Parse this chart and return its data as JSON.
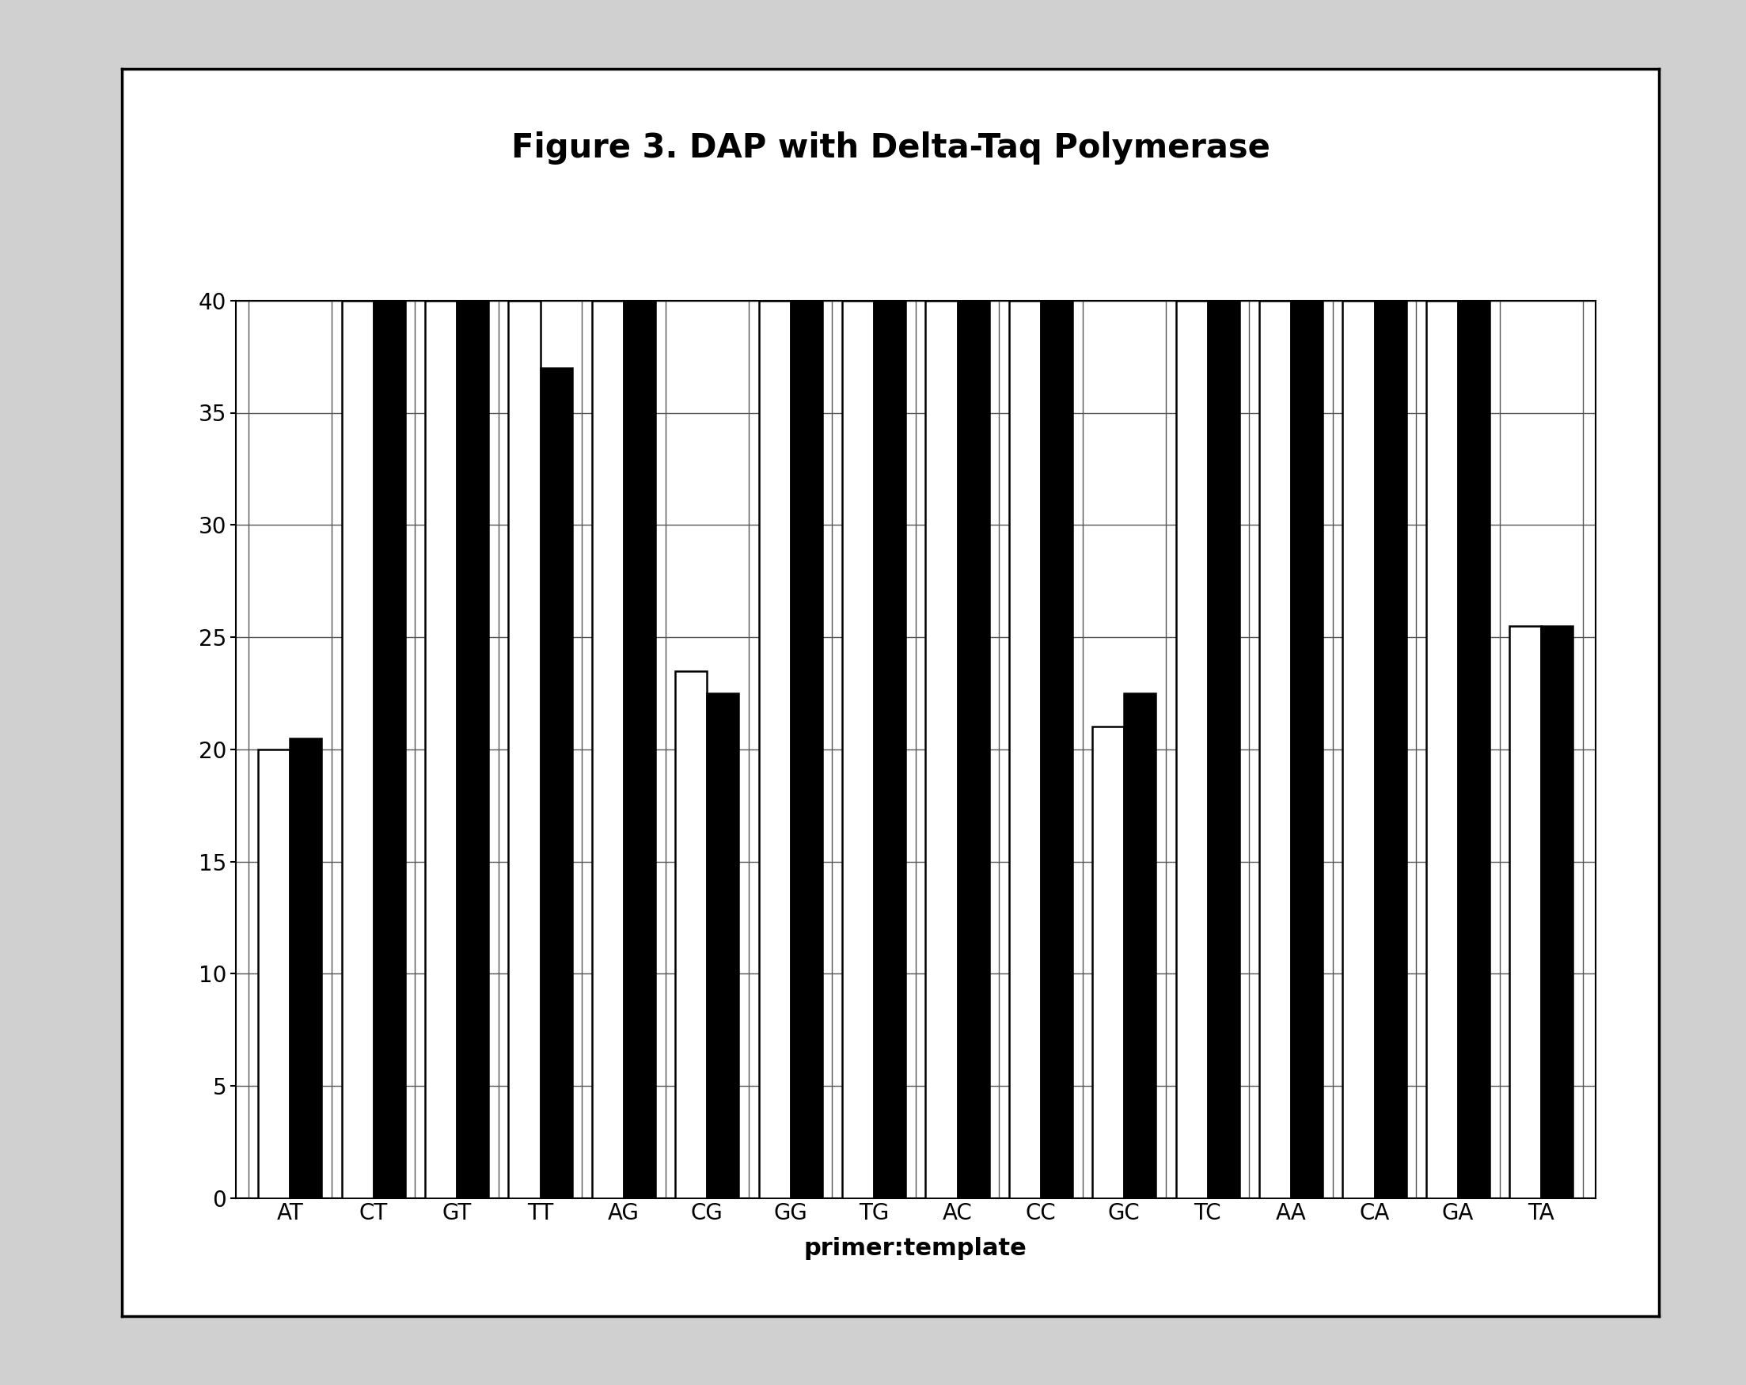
{
  "title": "Figure 3. DAP with Delta-Taq Polymerase",
  "xlabel": "primer:template",
  "ylabel": "",
  "categories": [
    "AT",
    "CT",
    "GT",
    "TT",
    "AG",
    "CG",
    "GG",
    "TG",
    "AC",
    "CC",
    "GC",
    "TC",
    "AA",
    "CA",
    "GA",
    "TA"
  ],
  "white_values": [
    20.0,
    40.0,
    40.0,
    40.0,
    40.0,
    23.5,
    40.0,
    40.0,
    40.0,
    40.0,
    21.0,
    40.0,
    40.0,
    40.0,
    40.0,
    25.5
  ],
  "black_values": [
    20.5,
    40.0,
    40.0,
    37.0,
    40.0,
    22.5,
    40.0,
    40.0,
    40.0,
    40.0,
    22.5,
    40.0,
    40.0,
    40.0,
    40.0,
    25.5
  ],
  "ylim": [
    0,
    40
  ],
  "yticks": [
    0,
    5,
    10,
    15,
    20,
    25,
    30,
    35,
    40
  ],
  "bar_width": 0.38,
  "white_color": "#ffffff",
  "black_color": "#000000",
  "edge_color": "#000000",
  "background_color": "#ffffff",
  "grid_color": "#888888",
  "title_fontsize": 30,
  "tick_fontsize": 20,
  "label_fontsize": 22,
  "outer_bg": "#d0d0d0"
}
